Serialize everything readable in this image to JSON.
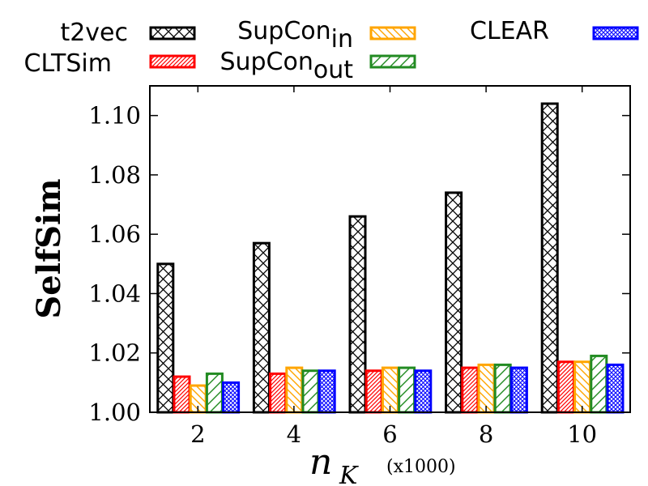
{
  "chart_data": {
    "type": "bar",
    "xlabel_main": "n",
    "xlabel_sub": "K",
    "xlabel_unit": "(x1000)",
    "ylabel": "SelfSim",
    "categories": [
      "2",
      "4",
      "6",
      "8",
      "10"
    ],
    "ylim": [
      1.0,
      1.11
    ],
    "yticks": [
      "1.00",
      "1.02",
      "1.04",
      "1.06",
      "1.08",
      "1.10"
    ],
    "grid": false,
    "legend_position": "top",
    "series": [
      {
        "name": "t2vec",
        "color": "#000000",
        "pattern": "crosshatch",
        "values": [
          1.05,
          1.057,
          1.066,
          1.074,
          1.104
        ]
      },
      {
        "name": "CLTSim",
        "color": "#ff0000",
        "pattern": "dense-diagonal",
        "values": [
          1.012,
          1.013,
          1.014,
          1.015,
          1.017
        ]
      },
      {
        "name": "SupCon",
        "name_sub": "in",
        "color": "#ffa500",
        "pattern": "diagonal",
        "values": [
          1.009,
          1.015,
          1.015,
          1.016,
          1.017
        ]
      },
      {
        "name": "SupCon",
        "name_sub": "out",
        "color": "#228b22",
        "pattern": "diagonal-wide",
        "values": [
          1.013,
          1.014,
          1.015,
          1.016,
          1.019
        ]
      },
      {
        "name": "CLEAR",
        "color": "#0000ff",
        "pattern": "fine-crosshatch",
        "values": [
          1.01,
          1.014,
          1.014,
          1.015,
          1.016
        ]
      }
    ]
  }
}
